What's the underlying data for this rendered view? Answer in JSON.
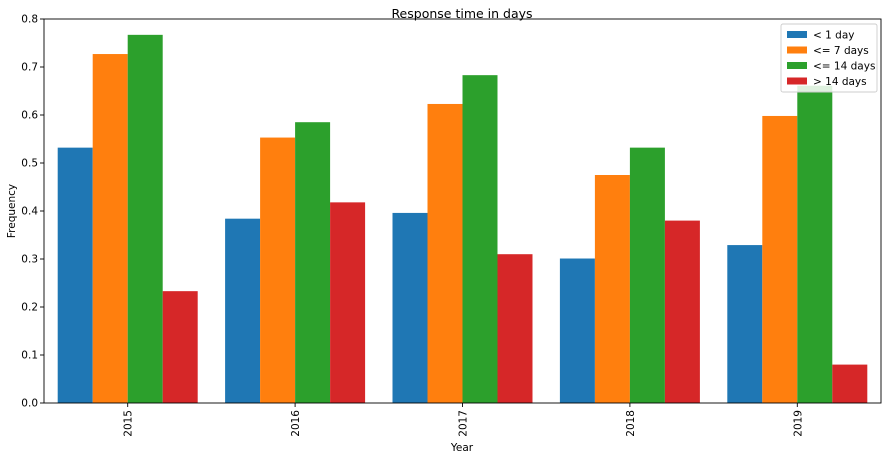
{
  "chart_data": {
    "type": "bar",
    "title": "Response time in days",
    "xlabel": "Year",
    "ylabel": "Frequency",
    "categories": [
      "2015",
      "2016",
      "2017",
      "2018",
      "2019"
    ],
    "ylim": [
      0,
      0.8
    ],
    "yticks": [
      "0.0",
      "0.1",
      "0.2",
      "0.3",
      "0.4",
      "0.5",
      "0.6",
      "0.7",
      "0.8"
    ],
    "grid": false,
    "legend_position": "top-right",
    "series": [
      {
        "name": "< 1 day",
        "color": "#1f77b4",
        "values": [
          0.532,
          0.384,
          0.396,
          0.301,
          0.329
        ]
      },
      {
        "name": "<= 7 days",
        "color": "#ff7f0e",
        "values": [
          0.727,
          0.553,
          0.623,
          0.475,
          0.598
        ]
      },
      {
        "name": "<= 14 days",
        "color": "#2ca02c",
        "values": [
          0.767,
          0.585,
          0.683,
          0.532,
          0.661
        ]
      },
      {
        "name": "> 14 days",
        "color": "#d62728",
        "values": [
          0.233,
          0.418,
          0.31,
          0.38,
          0.08
        ]
      }
    ]
  }
}
